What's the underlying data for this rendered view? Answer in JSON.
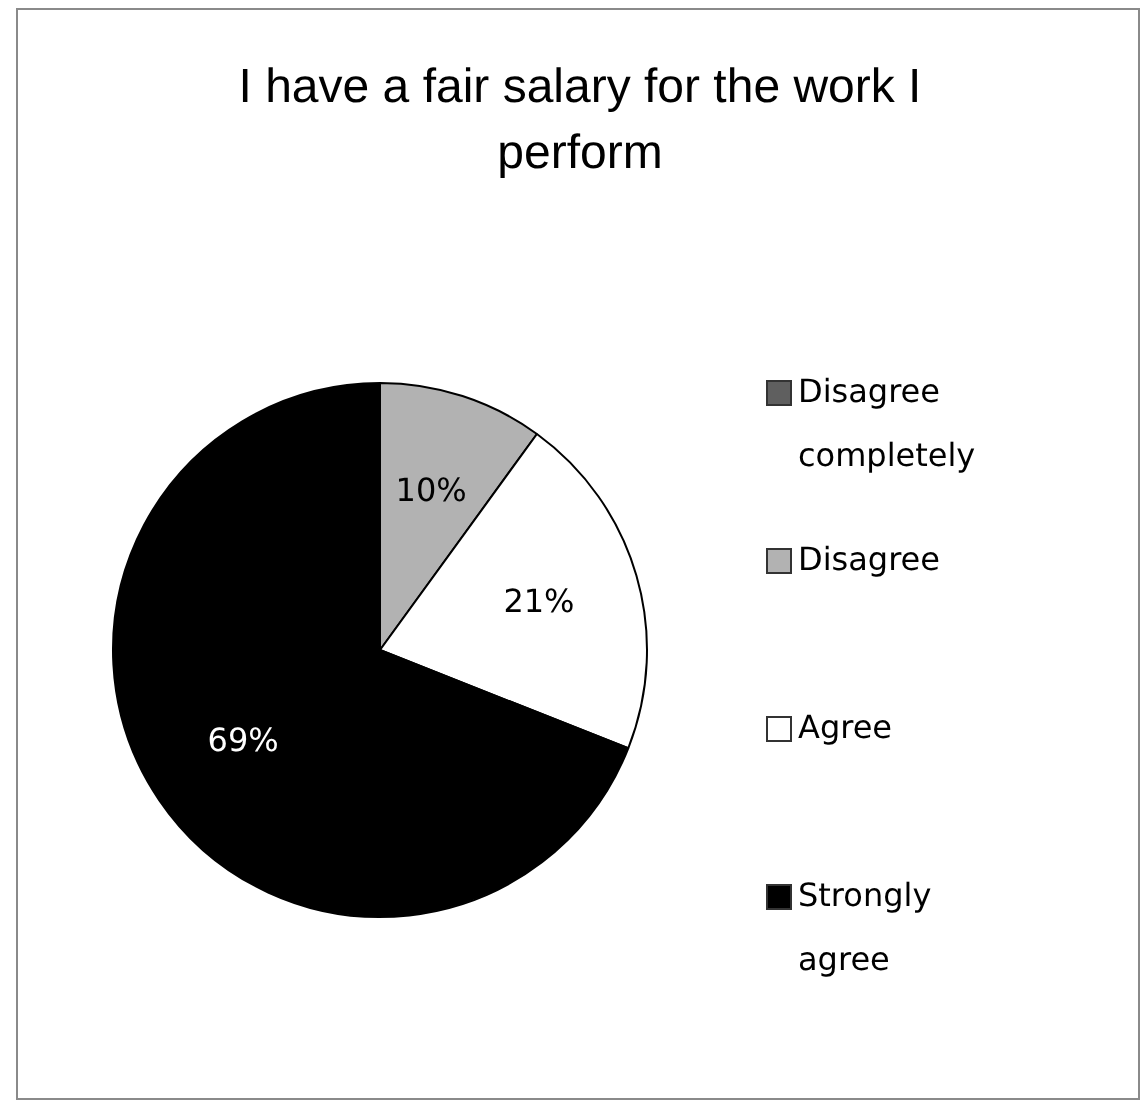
{
  "chart_data": {
    "type": "pie",
    "title": "I have a fair salary for the work I perform",
    "categories": [
      "Disagree completely",
      "Disagree",
      "Agree",
      "Strongly agree"
    ],
    "values": [
      0,
      10,
      21,
      69
    ],
    "colors": [
      "#5f5f5f",
      "#b2b2b2",
      "#ffffff",
      "#000000"
    ],
    "value_labels": [
      null,
      "10%",
      "21%",
      "69%"
    ],
    "legend": "right"
  }
}
